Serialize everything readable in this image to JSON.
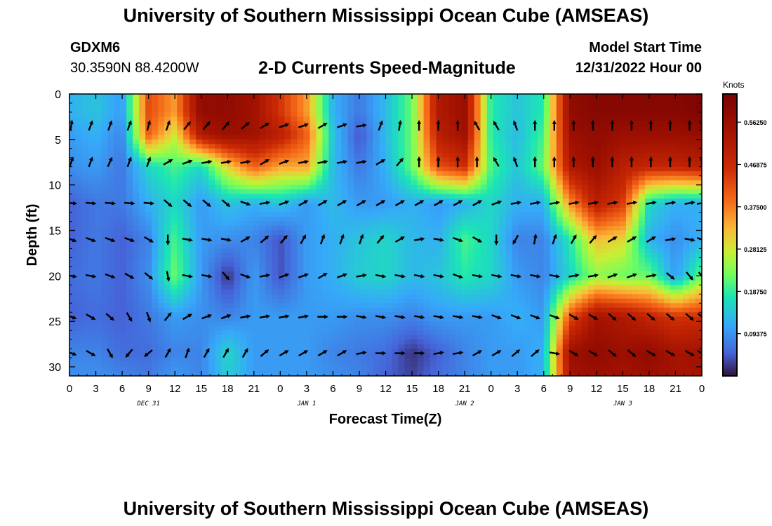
{
  "page": {
    "title_top": "University of Southern Mississippi Ocean Cube (AMSEAS)",
    "title_bottom": "University of Southern Mississippi Ocean Cube (AMSEAS)",
    "station_id": "GDXM6",
    "station_coords": "30.3590N  88.4200W",
    "subtitle": "2-D Currents Speed-Magnitude",
    "model_start_label": "Model Start Time",
    "model_start_value": "12/31/2022 Hour 00"
  },
  "chart_data": {
    "type": "heatmap",
    "title": "2-D Currents Speed-Magnitude",
    "xlabel": "Forecast Time(Z)",
    "ylabel": "Depth (ft)",
    "x_hours": [
      0,
      72
    ],
    "xlim_hours": [
      0,
      72
    ],
    "ylim": [
      0,
      31
    ],
    "y_inverted": true,
    "x_tick_labels": [
      "0",
      "3",
      "6",
      "9",
      "12",
      "15",
      "18",
      "21",
      "0",
      "3",
      "6",
      "9",
      "12",
      "15",
      "18",
      "21",
      "0",
      "3",
      "6",
      "9",
      "12",
      "15",
      "18",
      "21",
      "0"
    ],
    "x_tick_hours": [
      0,
      3,
      6,
      9,
      12,
      15,
      18,
      21,
      24,
      27,
      30,
      33,
      36,
      39,
      42,
      45,
      48,
      51,
      54,
      57,
      60,
      63,
      66,
      69,
      72
    ],
    "date_labels": [
      {
        "text": "DEC 31",
        "hour": 9
      },
      {
        "text": "JAN 1",
        "hour": 27
      },
      {
        "text": "JAN 2",
        "hour": 45
      },
      {
        "text": "JAN 3",
        "hour": 63
      }
    ],
    "y_tick_labels": [
      "0",
      "5",
      "10",
      "15",
      "20",
      "25",
      "30"
    ],
    "y_tick_values": [
      0,
      5,
      10,
      15,
      20,
      25,
      30
    ],
    "colorbar": {
      "label": "Knots",
      "min": 0,
      "max": 0.625,
      "tick_labels": [
        "0.09375",
        "0.18750",
        "0.28125",
        "0.37500",
        "0.46875",
        "0.56250"
      ],
      "tick_values": [
        0.09375,
        0.1875,
        0.28125,
        0.375,
        0.46875,
        0.5625
      ]
    },
    "grid_hours": [
      0,
      3,
      6,
      9,
      12,
      15,
      18,
      21,
      24,
      27,
      30,
      33,
      36,
      39,
      42,
      45,
      48,
      51,
      54,
      57,
      60,
      63,
      66,
      69,
      72
    ],
    "grid_depths": [
      2,
      4.5,
      8,
      12,
      16,
      20,
      24.5,
      28.5,
      31
    ],
    "speed_knots": [
      [
        0.12,
        0.14,
        0.1,
        0.42,
        0.35,
        0.58,
        0.58,
        0.55,
        0.45,
        0.35,
        0.12,
        0.07,
        0.13,
        0.22,
        0.52,
        0.56,
        0.18,
        0.14,
        0.18,
        0.58,
        0.6,
        0.6,
        0.6,
        0.6,
        0.62
      ],
      [
        0.1,
        0.12,
        0.08,
        0.4,
        0.28,
        0.52,
        0.56,
        0.55,
        0.5,
        0.4,
        0.14,
        0.04,
        0.13,
        0.22,
        0.5,
        0.55,
        0.18,
        0.13,
        0.2,
        0.56,
        0.58,
        0.56,
        0.56,
        0.56,
        0.57
      ],
      [
        0.09,
        0.1,
        0.07,
        0.16,
        0.2,
        0.16,
        0.3,
        0.4,
        0.34,
        0.34,
        0.13,
        0.07,
        0.12,
        0.22,
        0.42,
        0.46,
        0.2,
        0.14,
        0.22,
        0.52,
        0.56,
        0.5,
        0.48,
        0.48,
        0.5
      ],
      [
        0.05,
        0.07,
        0.07,
        0.12,
        0.16,
        0.1,
        0.14,
        0.12,
        0.14,
        0.1,
        0.13,
        0.1,
        0.1,
        0.12,
        0.1,
        0.12,
        0.16,
        0.12,
        0.12,
        0.36,
        0.5,
        0.44,
        0.16,
        0.12,
        0.12
      ],
      [
        0.05,
        0.07,
        0.05,
        0.08,
        0.2,
        0.1,
        0.09,
        0.08,
        0.04,
        0.1,
        0.12,
        0.14,
        0.16,
        0.13,
        0.12,
        0.2,
        0.16,
        0.08,
        0.08,
        0.18,
        0.32,
        0.3,
        0.12,
        0.09,
        0.12
      ],
      [
        0.06,
        0.07,
        0.05,
        0.09,
        0.22,
        0.1,
        0.02,
        0.1,
        0.04,
        0.1,
        0.12,
        0.15,
        0.16,
        0.13,
        0.14,
        0.18,
        0.16,
        0.1,
        0.08,
        0.16,
        0.24,
        0.22,
        0.22,
        0.1,
        0.22
      ],
      [
        0.05,
        0.06,
        0.05,
        0.07,
        0.1,
        0.09,
        0.08,
        0.1,
        0.1,
        0.1,
        0.1,
        0.09,
        0.09,
        0.08,
        0.1,
        0.1,
        0.1,
        0.12,
        0.1,
        0.42,
        0.54,
        0.52,
        0.48,
        0.45,
        0.46
      ],
      [
        0.08,
        0.08,
        0.06,
        0.06,
        0.08,
        0.08,
        0.16,
        0.1,
        0.1,
        0.1,
        0.08,
        0.07,
        0.06,
        0.02,
        0.05,
        0.08,
        0.1,
        0.1,
        0.12,
        0.56,
        0.58,
        0.56,
        0.58,
        0.54,
        0.55
      ],
      [
        0.09,
        0.09,
        0.08,
        0.07,
        0.1,
        0.08,
        0.15,
        0.1,
        0.1,
        0.1,
        0.09,
        0.08,
        0.05,
        0.03,
        0.06,
        0.08,
        0.1,
        0.1,
        0.12,
        0.54,
        0.56,
        0.54,
        0.56,
        0.54,
        0.54
      ]
    ],
    "vector_depths": [
      3.5,
      7.5,
      12,
      16,
      20,
      24.5,
      28.5
    ],
    "vector_hours": [
      0.2,
      2.4,
      4.6,
      6.8,
      9,
      11.2,
      13.4,
      15.6,
      17.8,
      20,
      22.2,
      24.4,
      26.6,
      28.8,
      31,
      33.2,
      35.4,
      37.6,
      39.8,
      42,
      44.2,
      46.4,
      48.6,
      50.8,
      53,
      55.2,
      57.4,
      59.6,
      61.8,
      64,
      66.2,
      68.4,
      70.6,
      72
    ],
    "vector_dir_deg": [
      [
        10,
        20,
        20,
        20,
        15,
        20,
        40,
        40,
        40,
        50,
        60,
        70,
        70,
        60,
        70,
        80,
        20,
        10,
        0,
        0,
        0,
        -30,
        -30,
        -20,
        0,
        0,
        0,
        0,
        0,
        0,
        0,
        0,
        0,
        0
      ],
      [
        20,
        20,
        25,
        20,
        20,
        60,
        70,
        80,
        80,
        80,
        60,
        70,
        80,
        80,
        80,
        80,
        60,
        40,
        0,
        0,
        0,
        0,
        -30,
        -20,
        0,
        0,
        0,
        0,
        0,
        0,
        0,
        0,
        0,
        0
      ],
      [
        95,
        95,
        95,
        95,
        95,
        130,
        130,
        130,
        130,
        110,
        80,
        70,
        60,
        60,
        60,
        60,
        60,
        60,
        60,
        60,
        60,
        60,
        70,
        80,
        80,
        80,
        80,
        80,
        80,
        80,
        80,
        80,
        80,
        80
      ],
      [
        110,
        110,
        110,
        110,
        120,
        180,
        100,
        100,
        100,
        60,
        50,
        40,
        30,
        20,
        20,
        20,
        40,
        60,
        80,
        100,
        110,
        120,
        180,
        210,
        10,
        20,
        30,
        40,
        60,
        60,
        60,
        80,
        100,
        110
      ],
      [
        100,
        100,
        110,
        120,
        130,
        170,
        100,
        100,
        140,
        110,
        80,
        70,
        70,
        60,
        70,
        80,
        100,
        100,
        100,
        100,
        110,
        100,
        100,
        100,
        100,
        100,
        80,
        80,
        70,
        70,
        80,
        130,
        140,
        140
      ],
      [
        110,
        120,
        130,
        150,
        160,
        40,
        60,
        70,
        70,
        80,
        80,
        80,
        80,
        90,
        90,
        100,
        100,
        100,
        100,
        100,
        100,
        100,
        110,
        110,
        110,
        110,
        120,
        120,
        130,
        130,
        130,
        130,
        130,
        130
      ],
      [
        110,
        120,
        150,
        220,
        230,
        30,
        20,
        30,
        30,
        30,
        50,
        60,
        60,
        60,
        60,
        80,
        90,
        90,
        90,
        80,
        80,
        60,
        60,
        50,
        50,
        100,
        120,
        120,
        130,
        130,
        120,
        120,
        120,
        120
      ]
    ]
  }
}
